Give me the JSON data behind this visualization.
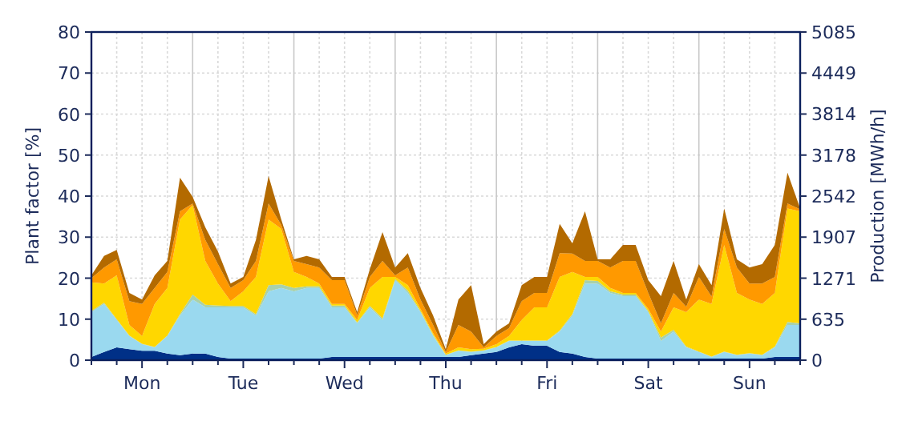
{
  "chart_data": {
    "type": "area",
    "stacked": true,
    "ylabel": "Plant factor [%]",
    "y2label": "Production [MWh/h]",
    "categories": [
      null,
      null,
      null,
      null,
      "Mon",
      null,
      null,
      null,
      null,
      null,
      null,
      null,
      "Tue",
      null,
      null,
      null,
      null,
      null,
      null,
      null,
      "Wed",
      null,
      null,
      null,
      null,
      null,
      null,
      null,
      "Thu",
      null,
      null,
      null,
      null,
      null,
      null,
      null,
      "Fri",
      null,
      null,
      null,
      null,
      null,
      null,
      null,
      "Sat",
      null,
      null,
      null,
      null,
      null,
      null,
      null,
      "Sun",
      null,
      null,
      null,
      null
    ],
    "series": [
      {
        "color": "#003087",
        "values": [
          0.8,
          2,
          3.1,
          2.7,
          2.3,
          2.3,
          1.6,
          1.2,
          1.6,
          1.6,
          0.8,
          0.4,
          0.4,
          0.4,
          0.4,
          0.4,
          0.4,
          0.4,
          0.4,
          0.8,
          0.8,
          0.8,
          0.8,
          0.8,
          0.8,
          0.8,
          0.8,
          0.8,
          0.8,
          0.8,
          1.2,
          1.6,
          2,
          3.1,
          3.9,
          3.5,
          3.5,
          2,
          1.6,
          0.8,
          0.4,
          0.4,
          0.4,
          0.4,
          0.4,
          0.4,
          0.4,
          0.4,
          0.4,
          0.4,
          0.4,
          0.4,
          0.4,
          0.4,
          0.8,
          0.8,
          0.8
        ]
      },
      {
        "color": "#9ad9ef",
        "values": [
          10.9,
          11.7,
          6.7,
          3.2,
          1.6,
          0.8,
          4.3,
          9.7,
          13.2,
          11.3,
          12.1,
          12.5,
          12.5,
          10.5,
          16.4,
          17.2,
          16.4,
          17.2,
          17.2,
          12.1,
          12.1,
          8.2,
          12.1,
          9,
          18.7,
          15.6,
          10.9,
          5.1,
          0.4,
          1.5,
          0.8,
          0.7,
          1.1,
          1.6,
          0.8,
          1.2,
          1.2,
          5,
          9.3,
          17.9,
          18.3,
          16,
          15.2,
          15.2,
          11.3,
          4.3,
          6.6,
          2.7,
          1.6,
          0.4,
          1.6,
          0.8,
          1.2,
          0.8,
          2.3,
          7.8,
          7.8
        ]
      },
      {
        "color": "#a9d1a9",
        "values": [
          0.3,
          0.3,
          0.2,
          0.1,
          0.1,
          0.1,
          0.1,
          0.3,
          1.2,
          0.6,
          0.4,
          0.3,
          0.3,
          0.3,
          1.5,
          0.9,
          0.8,
          0.4,
          0.4,
          0.4,
          0.4,
          0.2,
          0.3,
          0.4,
          0.3,
          0.6,
          0.3,
          0.3,
          0.1,
          0.1,
          0.1,
          0.1,
          0.1,
          0.1,
          0.1,
          0.1,
          0.1,
          0.2,
          0.3,
          0.8,
          0.6,
          0.4,
          0.4,
          0.4,
          0.3,
          0.8,
          0.4,
          0.2,
          0.1,
          0.1,
          0.1,
          0.1,
          0.1,
          0.1,
          0.2,
          0.7,
          0.4
        ]
      },
      {
        "color": "#ffd700",
        "values": [
          7,
          4.7,
          10.7,
          2.6,
          1.9,
          10.5,
          11.6,
          23.1,
          21.8,
          10.7,
          5.4,
          1.2,
          3.6,
          9.1,
          16,
          13.5,
          3.9,
          2.3,
          0.7,
          0.4,
          0.4,
          0.6,
          4.4,
          10.1,
          0.5,
          1.3,
          0.5,
          0.4,
          0.3,
          0.7,
          0.6,
          0.4,
          0.7,
          1.1,
          5,
          8.1,
          8.1,
          13.1,
          10.3,
          0.8,
          1,
          0.8,
          0.4,
          0.4,
          0.5,
          1.5,
          5.5,
          8.4,
          12.7,
          12.8,
          26,
          15.1,
          13.1,
          12.4,
          13.1,
          27.7,
          27.3
        ]
      },
      {
        "color": "#ff9900",
        "values": [
          1,
          3.9,
          3.9,
          5.8,
          7.8,
          3.9,
          3.9,
          2,
          0.4,
          5.1,
          4.7,
          3.2,
          2.7,
          3.9,
          3.9,
          1,
          2.7,
          3.1,
          3.9,
          5.8,
          5.8,
          1.2,
          2.7,
          3.9,
          0.4,
          4.3,
          2.3,
          2,
          0.4,
          5.5,
          4.3,
          0.3,
          2,
          1.9,
          4.6,
          3.5,
          3.5,
          5.8,
          4.5,
          3.9,
          3.9,
          5,
          7.8,
          7.8,
          3.9,
          2,
          3.5,
          1.3,
          5.5,
          1.8,
          3.9,
          6.2,
          3.9,
          5,
          3.9,
          1.2,
          0.5
        ]
      },
      {
        "color": "#b36a00",
        "values": [
          0.7,
          2.8,
          2.3,
          2,
          1.1,
          3.1,
          2.7,
          8.2,
          1.6,
          3.1,
          3.1,
          1.1,
          0.8,
          5.1,
          6.7,
          1.3,
          0.4,
          2,
          2,
          0.8,
          0.8,
          0.7,
          1.9,
          7,
          1.9,
          3.5,
          2.8,
          2.3,
          0.7,
          6.2,
          11.3,
          0.8,
          1.1,
          1.2,
          3.9,
          3.9,
          3.9,
          7.1,
          2.5,
          12.1,
          0.4,
          2,
          3.9,
          3.9,
          3.1,
          6.6,
          7.8,
          1.8,
          3.1,
          2.8,
          5,
          2,
          3.9,
          4.7,
          7.8,
          7.5,
          0.2
        ]
      }
    ],
    "ylim": [
      0,
      80
    ],
    "yticks": [
      0,
      10,
      20,
      30,
      40,
      50,
      60,
      70,
      80
    ],
    "y2lim": [
      0,
      5085
    ],
    "y2ticks": [
      0,
      635,
      1271,
      1907,
      2542,
      3178,
      3814,
      4449,
      5085
    ],
    "grid": true
  }
}
